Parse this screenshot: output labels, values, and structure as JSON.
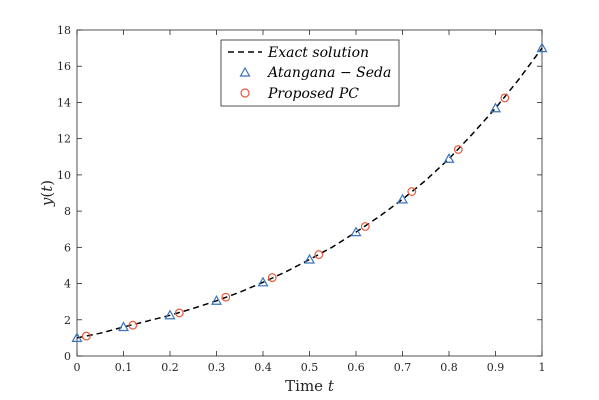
{
  "chart_data": {
    "type": "line",
    "xlabel": "Time t",
    "xlabel_parts": [
      "Time ",
      "t"
    ],
    "ylabel": "y(t)",
    "ylabel_parts": [
      "y",
      "(",
      "t",
      ")"
    ],
    "xlim": [
      0,
      1
    ],
    "ylim": [
      0,
      18
    ],
    "xticks": [
      0,
      0.1,
      0.2,
      0.3,
      0.4,
      0.5,
      0.6,
      0.7,
      0.8,
      0.9,
      1
    ],
    "xtick_labels": [
      "0",
      "0.1",
      "0.2",
      "0.3",
      "0.4",
      "0.5",
      "0.6",
      "0.7",
      "0.8",
      "0.9",
      "1"
    ],
    "yticks": [
      0,
      2,
      4,
      6,
      8,
      10,
      12,
      14,
      16,
      18
    ],
    "ytick_labels": [
      "0",
      "2",
      "4",
      "6",
      "8",
      "10",
      "12",
      "14",
      "16",
      "18"
    ],
    "grid": false,
    "legend_position": "top-center",
    "series": [
      {
        "name": "Exact solution",
        "style": "dashed-line",
        "color": "#000000",
        "x": [
          0,
          0.05,
          0.1,
          0.15,
          0.2,
          0.25,
          0.3,
          0.35,
          0.4,
          0.45,
          0.5,
          0.55,
          0.6,
          0.65,
          0.7,
          0.75,
          0.8,
          0.85,
          0.9,
          0.95,
          1
        ],
        "y": [
          1.0,
          1.26,
          1.6,
          1.92,
          2.25,
          2.63,
          3.05,
          3.52,
          4.07,
          4.66,
          5.33,
          6.03,
          6.84,
          7.7,
          8.65,
          9.7,
          10.89,
          12.25,
          13.68,
          15.27,
          17.0
        ]
      },
      {
        "name": "Atangana − Seda",
        "style": "triangle-marker",
        "color": "#3a74b9",
        "x": [
          0,
          0.1,
          0.2,
          0.3,
          0.4,
          0.5,
          0.6,
          0.7,
          0.8,
          0.9,
          1
        ],
        "y": [
          1.0,
          1.6,
          2.25,
          3.05,
          4.07,
          5.33,
          6.84,
          8.65,
          10.89,
          13.68,
          17.0
        ]
      },
      {
        "name": "Proposed PC",
        "style": "circle-marker",
        "color": "#e8593a",
        "x": [
          0.02,
          0.12,
          0.22,
          0.32,
          0.42,
          0.52,
          0.62,
          0.72,
          0.82,
          0.92
        ],
        "y": [
          1.1,
          1.7,
          2.38,
          3.25,
          4.33,
          5.6,
          7.15,
          9.08,
          11.4,
          14.25
        ]
      }
    ]
  }
}
